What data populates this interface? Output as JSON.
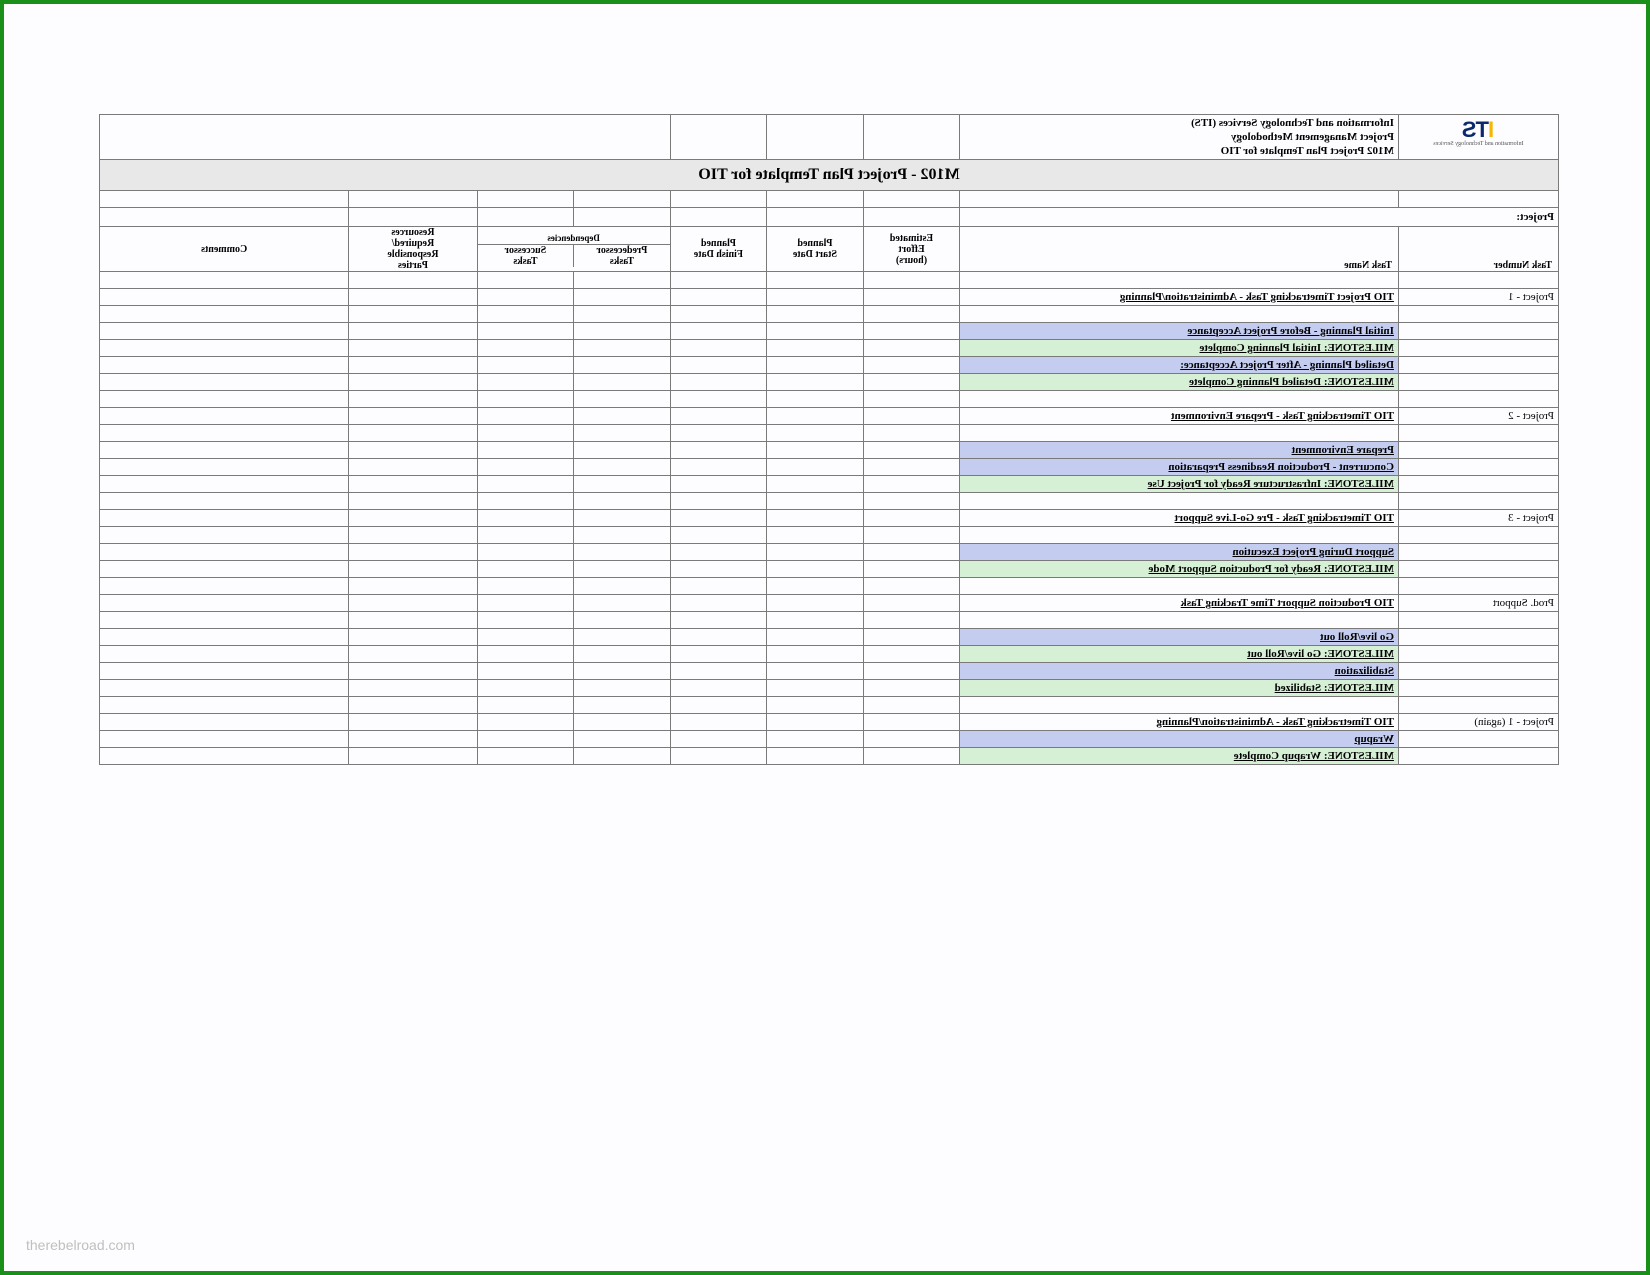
{
  "page": {
    "border_color": "#1a8f1a",
    "background": "#fdfdff",
    "watermark": "therebelroad.com"
  },
  "header": {
    "org_line1": "Information and Technology Services (ITS)",
    "org_line2": "Project Management Methodology",
    "org_line3": "M102 Project Plan Template for TIO",
    "logo_text_i": "I",
    "logo_text_ts": "TS",
    "logo_tagline": "Information and Technology Services"
  },
  "title_band": "M102 - Project Plan Template for TIO",
  "project_label": "Project:",
  "columns": {
    "task_number": "Task Number",
    "task_name": "Task Name",
    "effort_l1": "Estimated",
    "effort_l2": "Effort",
    "effort_l3": "(hours)",
    "start_l1": "Planned",
    "start_l2": "Start Date",
    "finish_l1": "Planned",
    "finish_l2": "Finish Date",
    "dep_group": "Dependencies",
    "dep_pred_l1": "Predecessor",
    "dep_pred_l2": "Tasks",
    "dep_succ_l1": "Successor",
    "dep_succ_l2": "Tasks",
    "res_l1": "Resources",
    "res_l2": "Required/",
    "res_l3": "Responsible",
    "res_l4": "Parties",
    "comments": "Comments"
  },
  "row_colors": {
    "section_text": "#b07a1a",
    "blue_bg": "#c4cdf0",
    "green_bg": "#d6f0d6"
  },
  "rows": [
    {
      "type": "blank"
    },
    {
      "type": "section",
      "num": "Project - 1",
      "name": "TIO Project Timetracking Task - Administration/Planning"
    },
    {
      "type": "blank"
    },
    {
      "type": "blue",
      "name": "Initial Planning - Before Project Acceptance"
    },
    {
      "type": "green",
      "name": "MILESTONE: Initial Planning Complete"
    },
    {
      "type": "blue",
      "name": "Detailed Planning - After Project Acceptance:"
    },
    {
      "type": "green",
      "name": "MILESTONE: Detailed Planning Complete"
    },
    {
      "type": "blank"
    },
    {
      "type": "section",
      "num": "Project - 2",
      "name": "TIO Timetracking Task - Prepare Environment"
    },
    {
      "type": "blank"
    },
    {
      "type": "blue",
      "name": "Prepare Environment"
    },
    {
      "type": "blue",
      "name": "Concurrent - Production Readiness Preparation"
    },
    {
      "type": "green",
      "name": "MILESTONE: Infrastructure Ready for Project Use"
    },
    {
      "type": "blank"
    },
    {
      "type": "section",
      "num": "Project - 3",
      "name": "TIO Timetracking Task - Pre Go-Live Support"
    },
    {
      "type": "blank"
    },
    {
      "type": "blue",
      "name": "Support During Project Execution"
    },
    {
      "type": "green",
      "name": "MILESTONE: Ready for Production Support Mode"
    },
    {
      "type": "blank"
    },
    {
      "type": "section",
      "num": "Prod. Support",
      "name": "TIO Production Support Time Tracking Task"
    },
    {
      "type": "blank"
    },
    {
      "type": "blue",
      "name": "Go live/Roll out"
    },
    {
      "type": "green",
      "name": "MILESTONE: Go live/Roll out"
    },
    {
      "type": "blue",
      "name": "Stabilization"
    },
    {
      "type": "green",
      "name": "MILESTONE: Stabilized"
    },
    {
      "type": "blank"
    },
    {
      "type": "section",
      "num": "Project - 1 (again)",
      "name": "TIO Timetracking Task - Administration/Planning"
    },
    {
      "type": "blue",
      "name": "Wrapup"
    },
    {
      "type": "green",
      "name": "MILESTONE: Wrapup Complete"
    }
  ]
}
